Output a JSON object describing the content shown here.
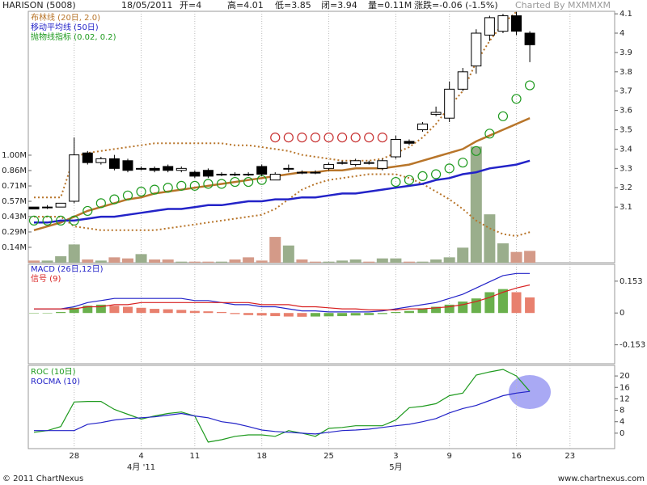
{
  "header": {
    "title": "HARISON (5008)",
    "date": "18/05/2011",
    "open": "开=4",
    "high": "高=4.01",
    "low": "低=3.85",
    "close": "闭=3.94",
    "volume": "量=0.11M",
    "change": "涨跌=-0.06 (-1.5%)",
    "credit": "Charted By MXMMXM"
  },
  "chart_data": [
    {
      "type": "candlestick",
      "categories": [
        null,
        null,
        null,
        "28",
        null,
        null,
        null,
        null,
        "4",
        null,
        null,
        null,
        "11",
        null,
        null,
        null,
        null,
        "18",
        null,
        null,
        null,
        null,
        "25",
        null,
        null,
        null,
        null,
        "3",
        null,
        null,
        null,
        "9",
        null,
        null,
        null,
        null,
        "16",
        null,
        null,
        null,
        "23",
        null
      ],
      "month_labels": [
        null,
        null,
        null,
        null,
        null,
        null,
        null,
        null,
        "4月 '11",
        null,
        null,
        null,
        null,
        null,
        null,
        null,
        null,
        null,
        null,
        null,
        null,
        null,
        null,
        null,
        null,
        null,
        null,
        "5月",
        null,
        null,
        null,
        null,
        null,
        null,
        null,
        null,
        null,
        null,
        null,
        null,
        null,
        null
      ],
      "open": [
        3.1,
        3.1,
        3.1,
        3.13,
        3.38,
        3.33,
        3.35,
        3.34,
        3.3,
        3.3,
        3.31,
        3.29,
        3.28,
        3.29,
        3.27,
        3.27,
        3.27,
        3.31,
        3.24,
        3.3,
        3.28,
        3.28,
        3.3,
        3.33,
        3.32,
        3.33,
        3.3,
        3.36,
        3.44,
        3.5,
        3.58,
        3.56,
        3.71,
        3.83,
        3.99,
        4.01,
        4.09,
        4,
        null,
        null,
        null,
        null
      ],
      "high": [
        3.1,
        3.11,
        3.12,
        3.46,
        3.39,
        3.36,
        3.37,
        3.35,
        3.31,
        3.31,
        3.32,
        3.31,
        3.29,
        3.3,
        3.28,
        3.28,
        3.28,
        3.32,
        3.28,
        3.32,
        3.29,
        3.29,
        3.33,
        3.34,
        3.35,
        3.34,
        3.35,
        3.47,
        3.45,
        3.54,
        3.62,
        3.75,
        3.82,
        4.02,
        4.09,
        4.1,
        4.11,
        4.01,
        null,
        null,
        null,
        null
      ],
      "low": [
        3.09,
        3.09,
        3.1,
        3.12,
        3.32,
        3.32,
        3.29,
        3.28,
        3.29,
        3.28,
        3.28,
        3.28,
        3.25,
        3.25,
        3.26,
        3.26,
        3.26,
        3.26,
        3.24,
        3.28,
        3.27,
        3.27,
        3.29,
        3.32,
        3.31,
        3.32,
        3.29,
        3.35,
        3.42,
        3.49,
        3.57,
        3.54,
        3.7,
        3.79,
        3.96,
        4.0,
        3.99,
        3.85,
        null,
        null,
        null,
        null
      ],
      "close": [
        3.09,
        3.1,
        3.12,
        3.37,
        3.33,
        3.35,
        3.3,
        3.29,
        3.3,
        3.29,
        3.29,
        3.3,
        3.26,
        3.26,
        3.27,
        3.27,
        3.27,
        3.27,
        3.27,
        3.3,
        3.28,
        3.28,
        3.32,
        3.33,
        3.34,
        3.33,
        3.34,
        3.45,
        3.43,
        3.53,
        3.59,
        3.71,
        3.8,
        4.0,
        4.08,
        4.09,
        4.01,
        3.94,
        null,
        null,
        null,
        null
      ],
      "up_color": "#ffffff",
      "down_color": "#000000",
      "ylim": [
        2.812,
        4.113
      ],
      "yticks": [
        3.1,
        3.2,
        3.3,
        3.4,
        3.5,
        3.6,
        3.7,
        3.8,
        3.9,
        4,
        4.1
      ],
      "volume": {
        "values": [
          0.02,
          0.02,
          0.06,
          0.17,
          0.03,
          0.02,
          0.05,
          0.04,
          0.08,
          0.03,
          0.03,
          0.01,
          0.01,
          0.01,
          0.01,
          0.03,
          0.05,
          0.02,
          0.24,
          0.16,
          0.03,
          0.01,
          0.01,
          0.02,
          0.03,
          0.01,
          0.04,
          0.04,
          0.01,
          0.01,
          0.03,
          0.05,
          0.14,
          1.08,
          0.45,
          0.18,
          0.1,
          0.11,
          null,
          null,
          null,
          null
        ],
        "up_color": "#9aae8c",
        "down_color": "#d49a88",
        "ylim": [
          0,
          2.338
        ],
        "yticks": [
          {
            "value": 0.143,
            "label": "0.14M"
          },
          {
            "value": 0.286,
            "label": "0.29M"
          },
          {
            "value": 0.429,
            "label": "0.43M"
          },
          {
            "value": 0.571,
            "label": "0.57M"
          },
          {
            "value": 0.714,
            "label": "0.71M"
          },
          {
            "value": 0.857,
            "label": "0.86M"
          },
          {
            "value": 1.0,
            "label": "1.00M"
          }
        ]
      },
      "series": [
        {
          "name": "布林线 (20日, 2.0)",
          "color": "#b8752a",
          "values": [
            2.98,
            3.0,
            3.02,
            3.05,
            3.08,
            3.1,
            3.12,
            3.14,
            3.15,
            3.17,
            3.18,
            3.19,
            3.2,
            3.21,
            3.22,
            3.23,
            3.24,
            3.25,
            3.26,
            3.27,
            3.28,
            3.28,
            3.29,
            3.29,
            3.3,
            3.3,
            3.3,
            3.31,
            3.32,
            3.34,
            3.36,
            3.38,
            3.4,
            3.44,
            3.47,
            3.5,
            3.53,
            3.56,
            null,
            null,
            null,
            null
          ],
          "upper": [
            3.15,
            3.15,
            3.15,
            3.36,
            3.38,
            3.39,
            3.4,
            3.41,
            3.42,
            3.43,
            3.43,
            3.43,
            3.43,
            3.43,
            3.43,
            3.42,
            3.42,
            3.41,
            3.4,
            3.39,
            3.37,
            3.36,
            3.35,
            3.34,
            3.34,
            3.34,
            3.35,
            3.38,
            3.41,
            3.46,
            3.53,
            3.62,
            3.7,
            3.85,
            3.96,
            4.05,
            4.11,
            4.15,
            null,
            null,
            null,
            null
          ],
          "lower": [
            3.05,
            3.05,
            3.05,
            3.0,
            2.99,
            2.98,
            2.98,
            2.98,
            2.98,
            2.98,
            2.99,
            3.0,
            3.01,
            3.02,
            3.03,
            3.04,
            3.05,
            3.06,
            3.09,
            3.14,
            3.19,
            3.22,
            3.24,
            3.25,
            3.26,
            3.27,
            3.27,
            3.27,
            3.25,
            3.22,
            3.18,
            3.14,
            3.09,
            3.03,
            2.99,
            2.96,
            2.95,
            2.97,
            null,
            null,
            null,
            null
          ]
        },
        {
          "name": "移动平均线 (50日)",
          "color": "#2323c8",
          "values": [
            3.02,
            3.02,
            3.03,
            3.03,
            3.04,
            3.05,
            3.05,
            3.06,
            3.07,
            3.08,
            3.09,
            3.09,
            3.1,
            3.11,
            3.11,
            3.12,
            3.13,
            3.13,
            3.14,
            3.14,
            3.15,
            3.15,
            3.16,
            3.17,
            3.17,
            3.18,
            3.19,
            3.2,
            3.21,
            3.22,
            3.24,
            3.25,
            3.27,
            3.28,
            3.3,
            3.31,
            3.32,
            3.34,
            null,
            null,
            null,
            null
          ]
        },
        {
          "name": "抛物线指标 (0.02, 0.2)",
          "color": "#1e9a1e",
          "above_color": "#c83232",
          "values": [
            3.03,
            3.03,
            3.03,
            3.03,
            3.08,
            3.12,
            3.14,
            3.16,
            3.18,
            3.19,
            3.2,
            3.21,
            3.21,
            3.22,
            3.22,
            3.23,
            3.23,
            3.24,
            3.46,
            3.46,
            3.46,
            3.46,
            3.46,
            3.46,
            3.46,
            3.46,
            3.46,
            3.23,
            3.24,
            3.26,
            3.27,
            3.3,
            3.33,
            3.39,
            3.48,
            3.57,
            3.66,
            3.73,
            null,
            null,
            null,
            null
          ]
        }
      ]
    },
    {
      "type": "macd",
      "ylim": [
        -0.244,
        0.234
      ],
      "yticks": [
        -0.153,
        0,
        0.153
      ],
      "histogram": {
        "up_color": "#6ab04c",
        "down_color": "#e8806e",
        "values": [
          0,
          0,
          0.005,
          0.025,
          0.035,
          0.04,
          0.035,
          0.03,
          0.025,
          0.02,
          0.018,
          0.015,
          0.01,
          0.008,
          0.005,
          -0.005,
          -0.01,
          -0.012,
          -0.015,
          -0.017,
          -0.018,
          -0.017,
          -0.016,
          -0.015,
          -0.012,
          -0.01,
          -0.005,
          0.005,
          0.01,
          0.02,
          0.03,
          0.04,
          0.055,
          0.07,
          0.1,
          0.115,
          0.1,
          0.075,
          null,
          null,
          null,
          null
        ]
      },
      "series": [
        {
          "name": "MACD (26日,12日)",
          "color": "#2323c8",
          "values": [
            0.02,
            0.02,
            0.02,
            0.03,
            0.05,
            0.06,
            0.07,
            0.07,
            0.07,
            0.07,
            0.07,
            0.07,
            0.06,
            0.06,
            0.05,
            0.04,
            0.04,
            0.03,
            0.03,
            0.02,
            0.01,
            0.01,
            0.005,
            0.005,
            0.005,
            0.005,
            0.01,
            0.02,
            0.03,
            0.04,
            0.05,
            0.07,
            0.09,
            0.12,
            0.15,
            0.18,
            0.19,
            0.19,
            null,
            null,
            null,
            null
          ]
        },
        {
          "name": "信号 (9)",
          "color": "#d82020",
          "values": [
            0.02,
            0.02,
            0.02,
            0.02,
            0.03,
            0.03,
            0.04,
            0.04,
            0.05,
            0.05,
            0.05,
            0.05,
            0.05,
            0.05,
            0.05,
            0.05,
            0.05,
            0.04,
            0.04,
            0.04,
            0.03,
            0.03,
            0.025,
            0.02,
            0.02,
            0.015,
            0.015,
            0.015,
            0.02,
            0.02,
            0.025,
            0.03,
            0.04,
            0.055,
            0.075,
            0.1,
            0.12,
            0.135,
            null,
            null,
            null,
            null
          ]
        }
      ]
    },
    {
      "type": "line",
      "ylim": [
        -5.4,
        23.7
      ],
      "yticks": [
        0,
        4,
        8,
        12,
        16,
        20
      ],
      "series": [
        {
          "name": "ROC (10日)",
          "color": "#1e9a1e",
          "values": [
            0.3,
            0.9,
            2.3,
            10.9,
            11.1,
            11.1,
            8.3,
            6.6,
            4.9,
            6.0,
            6.9,
            7.4,
            6.0,
            -3.1,
            -2.3,
            -1.1,
            -0.6,
            -0.6,
            -1.1,
            0.9,
            0,
            -1.1,
            1.7,
            2.0,
            2.6,
            2.6,
            2.6,
            4.6,
            8.9,
            9.4,
            10.3,
            13.1,
            14.0,
            20.3,
            21.4,
            22.3,
            20.0,
            14.6,
            null,
            null,
            null,
            null
          ]
        },
        {
          "name": "ROCMA (10)",
          "color": "#2323c8",
          "values": [
            0.9,
            0.9,
            0.9,
            0.9,
            3.1,
            3.7,
            4.6,
            5.1,
            5.4,
            5.7,
            6.3,
            6.9,
            6.0,
            5.4,
            4.0,
            3.4,
            2.3,
            1.1,
            0.6,
            0.3,
            0,
            -0.3,
            0.3,
            0.9,
            1.1,
            1.4,
            2.0,
            2.6,
            3.1,
            4.0,
            5.1,
            7.1,
            8.6,
            9.7,
            11.4,
            13.1,
            14.0,
            14.6,
            null,
            null,
            null,
            null
          ]
        }
      ]
    }
  ],
  "footer": {
    "left": "© 2011 ChartNexus",
    "right": "www.chartnexus.com"
  }
}
